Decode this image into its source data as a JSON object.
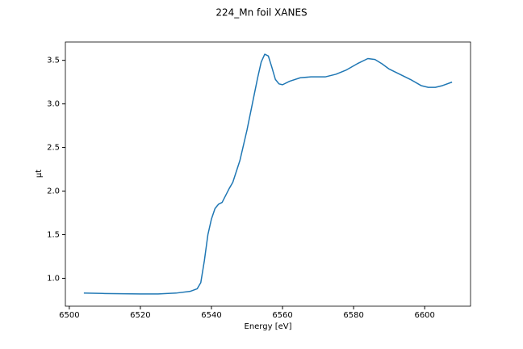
{
  "chart_data": {
    "type": "line",
    "title": "224_Mn foil XANES",
    "x_label": "Energy [eV]",
    "y_label": "μt",
    "x": [
      6504.1,
      6510,
      6520,
      6525,
      6530,
      6534,
      6536,
      6537,
      6538,
      6539,
      6540,
      6541,
      6542,
      6543,
      6544,
      6545,
      6546,
      6548,
      6550,
      6552,
      6553,
      6554,
      6555,
      6556,
      6557,
      6558,
      6559,
      6560,
      6562,
      6565,
      6568,
      6572,
      6575,
      6578,
      6581,
      6584,
      6586,
      6588,
      6590,
      6593,
      6596,
      6599,
      6601,
      6603,
      6605,
      6607.7
    ],
    "values": [
      0.83,
      0.825,
      0.82,
      0.82,
      0.83,
      0.85,
      0.88,
      0.95,
      1.2,
      1.5,
      1.68,
      1.8,
      1.85,
      1.87,
      1.95,
      2.03,
      2.1,
      2.35,
      2.7,
      3.1,
      3.3,
      3.48,
      3.57,
      3.55,
      3.42,
      3.28,
      3.23,
      3.22,
      3.26,
      3.3,
      3.31,
      3.31,
      3.34,
      3.39,
      3.46,
      3.52,
      3.51,
      3.46,
      3.4,
      3.34,
      3.28,
      3.21,
      3.19,
      3.19,
      3.21,
      3.25
    ],
    "color": "#1f77b4",
    "xlim": [
      6498.9,
      6612.9
    ],
    "xticks": [
      6500,
      6520,
      6540,
      6560,
      6580,
      6600
    ],
    "ylim": [
      0.68,
      3.71
    ],
    "yticks": [
      {
        "value": 1,
        "label": "1.0"
      },
      1.5,
      {
        "value": 2,
        "label": "2.0"
      },
      2.5,
      {
        "value": 3,
        "label": "3.0"
      },
      3.5
    ],
    "grid": false
  }
}
